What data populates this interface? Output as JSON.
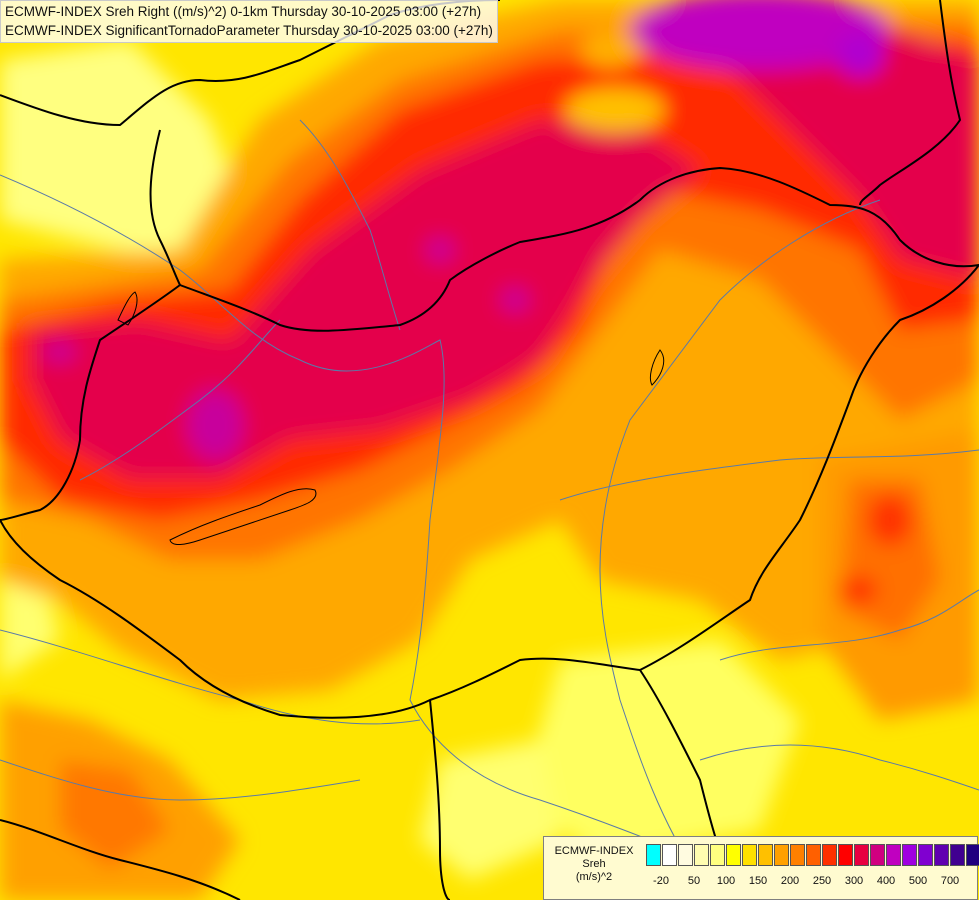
{
  "header": {
    "line1": "ECMWF-INDEX Sreh Right ((m/s)^2) 0-1km Thursday 30-10-2025 03:00 (+27h)",
    "line2": "ECMWF-INDEX SignificantTornadoParameter Thursday 30-10-2025 03:00 (+27h)"
  },
  "legend": {
    "title": "ECMWF-INDEX",
    "variable": "Sreh",
    "unit": "(m/s)^2",
    "colors": [
      "#00ffff",
      "#ffffff",
      "#fffbe0",
      "#fffdb0",
      "#ffff80",
      "#ffff00",
      "#ffe000",
      "#ffc000",
      "#ffa000",
      "#ff8000",
      "#ff6000",
      "#ff3000",
      "#ff0000",
      "#e80040",
      "#d00080",
      "#c000c0",
      "#a000e0",
      "#8000d0",
      "#6000b0",
      "#400090",
      "#200080"
    ],
    "ticks": [
      "-20",
      "50",
      "100",
      "150",
      "200",
      "250",
      "300",
      "400",
      "500",
      "700"
    ]
  },
  "palette": {
    "light_yellow": "#ffff99",
    "yellow": "#ffee00",
    "orange": "#ffaa00",
    "dark_orange": "#ff7000",
    "red": "#ff2a00",
    "crimson": "#e8004e",
    "magenta": "#c8009c",
    "border_color": "#000000",
    "river_color": "#5a7aa8"
  }
}
